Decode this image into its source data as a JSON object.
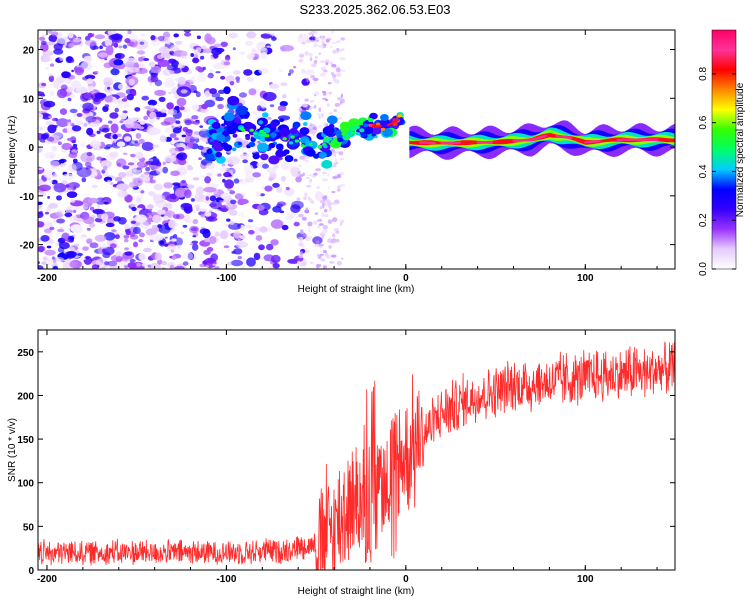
{
  "title": "S233.2025.362.06.53.E03",
  "chart_data": [
    {
      "type": "heatmap",
      "name": "spectrogram",
      "xlabel": "Height of straight line (km)",
      "ylabel": "Frequency (Hz)",
      "xlim": [
        -205,
        150
      ],
      "ylim": [
        -25,
        24
      ],
      "xticks": [
        -200,
        -100,
        0,
        100
      ],
      "yticks": [
        -20,
        -10,
        0,
        10,
        20
      ],
      "colorbar": {
        "label": "Normalized spectral amplitude",
        "range": [
          0.0,
          0.98
        ],
        "ticks": [
          0.0,
          0.2,
          0.4,
          0.6,
          0.8
        ],
        "tick_labels": [
          "0.0",
          "0.2",
          "0.4",
          "0.6",
          "0.8"
        ],
        "colors": [
          "#ffffff",
          "#e6ccff",
          "#9933ff",
          "#3300ff",
          "#0000ff",
          "#00ccff",
          "#00ff66",
          "#33ff00",
          "#ffff00",
          "#ff8800",
          "#ff0000",
          "#ff3399",
          "#ff0066"
        ]
      },
      "ridge": [
        {
          "x": -100,
          "f": 4.0
        },
        {
          "x": -85,
          "f": 3.0
        },
        {
          "x": -75,
          "f": 2.5
        },
        {
          "x": -60,
          "f": 1.0
        },
        {
          "x": -50,
          "f": 0.0
        },
        {
          "x": -40,
          "f": 2.0
        },
        {
          "x": -30,
          "f": 3.5
        },
        {
          "x": -20,
          "f": 4.0
        },
        {
          "x": -10,
          "f": 4.5
        },
        {
          "x": -2,
          "f": 6.0
        },
        {
          "x": 2,
          "f": 1.0
        },
        {
          "x": 20,
          "f": 0.8
        },
        {
          "x": 50,
          "f": 1.0
        },
        {
          "x": 70,
          "f": 1.5
        },
        {
          "x": 80,
          "f": 2.5
        },
        {
          "x": 90,
          "f": 2.0
        },
        {
          "x": 100,
          "f": 1.0
        },
        {
          "x": 120,
          "f": 1.5
        },
        {
          "x": 150,
          "f": 1.5
        }
      ]
    },
    {
      "type": "line",
      "name": "snr",
      "xlabel": "Height of straight line (km)",
      "ylabel": "SNR (10 * v/v)",
      "xlim": [
        -205,
        150
      ],
      "ylim": [
        0,
        275
      ],
      "xticks": [
        -200,
        -100,
        0,
        100
      ],
      "yticks": [
        0,
        50,
        100,
        150,
        200,
        250
      ],
      "color": "#ff2a2a",
      "trend": [
        {
          "x": -205,
          "y": 20
        },
        {
          "x": -150,
          "y": 20
        },
        {
          "x": -100,
          "y": 20
        },
        {
          "x": -70,
          "y": 22
        },
        {
          "x": -50,
          "y": 30
        },
        {
          "x": -40,
          "y": 50
        },
        {
          "x": -30,
          "y": 80
        },
        {
          "x": -20,
          "y": 95
        },
        {
          "x": -10,
          "y": 110
        },
        {
          "x": 0,
          "y": 130
        },
        {
          "x": 10,
          "y": 155
        },
        {
          "x": 20,
          "y": 180
        },
        {
          "x": 40,
          "y": 200
        },
        {
          "x": 60,
          "y": 210
        },
        {
          "x": 100,
          "y": 220
        },
        {
          "x": 150,
          "y": 230
        }
      ]
    }
  ]
}
